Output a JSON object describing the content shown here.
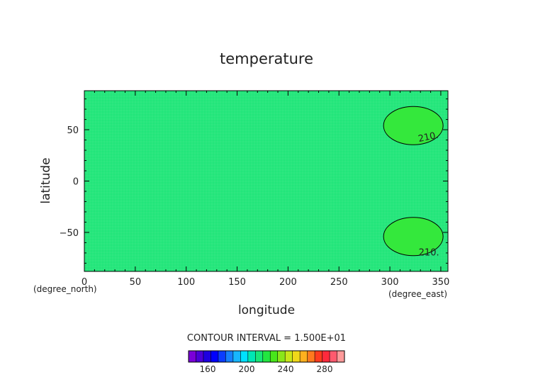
{
  "chart_data": {
    "type": "heatmap",
    "title": "temperature",
    "xlabel": "longitude",
    "ylabel": "latitude",
    "x_units": "(degree_east)",
    "y_units": "(degree_north)",
    "xlim": [
      0,
      357
    ],
    "ylim": [
      -88,
      88
    ],
    "x_ticks": [
      0,
      50,
      100,
      150,
      200,
      250,
      300,
      350
    ],
    "y_ticks": [
      50,
      0,
      -50
    ],
    "background_field_color": "#22e67a",
    "contours": [
      {
        "label": "210.",
        "level": 210,
        "center_lon": 323,
        "center_lat": 54,
        "fill": "#34e83c"
      },
      {
        "label": "210.",
        "level": 210,
        "center_lon": 323,
        "center_lat": -54,
        "fill": "#34e83c"
      }
    ],
    "contour_interval_text": "CONTOUR INTERVAL = 1.500E+01",
    "colorbar": {
      "tick_labels": [
        "160",
        "200",
        "240",
        "280"
      ],
      "colors": [
        "#7a00d8",
        "#4b00d8",
        "#1e00e0",
        "#0000ff",
        "#0b3cff",
        "#1680ff",
        "#17b6ff",
        "#00e0ff",
        "#00e6b4",
        "#18e678",
        "#22e640",
        "#48e61a",
        "#8ae61a",
        "#c8e61a",
        "#f0d81a",
        "#ffb01e",
        "#ff7a1e",
        "#ff3c1e",
        "#ff2a3c",
        "#ff5a6e",
        "#ff9a9a"
      ]
    }
  }
}
